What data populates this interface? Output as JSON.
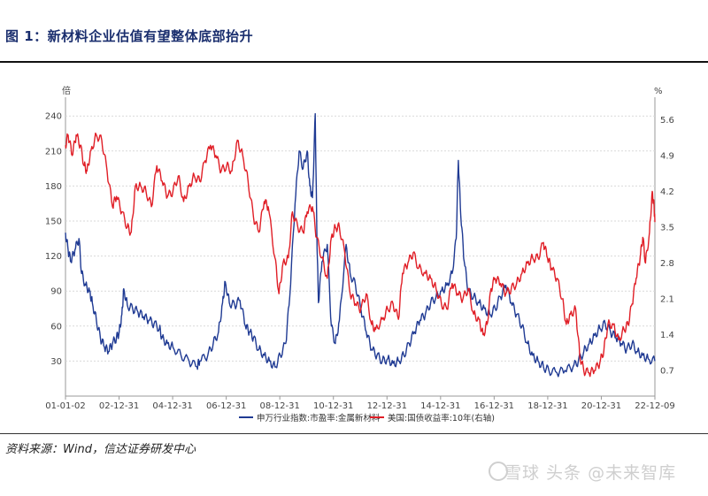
{
  "header": {
    "title": "图 1：新材料企业估值有望整体底部抬升"
  },
  "footer": {
    "source": "资料来源：Wind，信达证券研发中心",
    "watermark": "雪球 头条 @未来智库"
  },
  "chart_data": {
    "type": "line",
    "title": "",
    "left_axis": {
      "unit_label": "倍",
      "ylim": [
        0,
        250
      ],
      "ticks": [
        30,
        60,
        90,
        120,
        150,
        180,
        210,
        240
      ]
    },
    "right_axis": {
      "unit_label": "%",
      "ylim": [
        0.2,
        5.9
      ],
      "ticks": [
        0.7,
        1.4,
        2.1,
        2.8,
        3.5,
        4.2,
        4.9,
        5.6
      ]
    },
    "x_ticks": [
      "01-01-02",
      "02-12-31",
      "04-12-31",
      "06-12-31",
      "08-12-31",
      "10-12-31",
      "12-12-31",
      "14-12-31",
      "16-12-31",
      "18-12-31",
      "20-12-31",
      "22-12-09"
    ],
    "x_range": [
      2001.0,
      2022.95
    ],
    "grid": true,
    "legend_position": "bottom",
    "series": [
      {
        "name": "申万行业指数:市盈率:金属新材料",
        "axis": "left",
        "color": "#1f3a93",
        "points": [
          [
            2001.0,
            140
          ],
          [
            2001.1,
            125
          ],
          [
            2001.2,
            115
          ],
          [
            2001.35,
            125
          ],
          [
            2001.5,
            135
          ],
          [
            2001.6,
            105
          ],
          [
            2001.75,
            95
          ],
          [
            2001.9,
            90
          ],
          [
            2002.0,
            80
          ],
          [
            2002.15,
            65
          ],
          [
            2002.3,
            50
          ],
          [
            2002.45,
            42
          ],
          [
            2002.6,
            38
          ],
          [
            2002.75,
            45
          ],
          [
            2002.9,
            50
          ],
          [
            2003.0,
            55
          ],
          [
            2003.1,
            70
          ],
          [
            2003.17,
            92
          ],
          [
            2003.3,
            78
          ],
          [
            2003.5,
            75
          ],
          [
            2003.7,
            72
          ],
          [
            2003.9,
            68
          ],
          [
            2004.1,
            65
          ],
          [
            2004.3,
            62
          ],
          [
            2004.5,
            58
          ],
          [
            2004.6,
            50
          ],
          [
            2004.8,
            45
          ],
          [
            2005.0,
            42
          ],
          [
            2005.3,
            35
          ],
          [
            2005.6,
            30
          ],
          [
            2005.9,
            25
          ],
          [
            2006.0,
            30
          ],
          [
            2006.3,
            35
          ],
          [
            2006.5,
            45
          ],
          [
            2006.7,
            55
          ],
          [
            2006.85,
            80
          ],
          [
            2006.95,
            98
          ],
          [
            2007.1,
            80
          ],
          [
            2007.3,
            78
          ],
          [
            2007.5,
            82
          ],
          [
            2007.7,
            60
          ],
          [
            2007.85,
            55
          ],
          [
            2008.0,
            50
          ],
          [
            2008.2,
            40
          ],
          [
            2008.4,
            35
          ],
          [
            2008.6,
            30
          ],
          [
            2008.8,
            25
          ],
          [
            2009.0,
            35
          ],
          [
            2009.2,
            45
          ],
          [
            2009.35,
            85
          ],
          [
            2009.55,
            165
          ],
          [
            2009.7,
            210
          ],
          [
            2009.85,
            195
          ],
          [
            2010.0,
            210
          ],
          [
            2010.1,
            180
          ],
          [
            2010.2,
            170
          ],
          [
            2010.3,
            242
          ],
          [
            2010.36,
            140
          ],
          [
            2010.42,
            80
          ],
          [
            2010.55,
            115
          ],
          [
            2010.75,
            130
          ],
          [
            2010.9,
            60
          ],
          [
            2011.05,
            45
          ],
          [
            2011.2,
            65
          ],
          [
            2011.45,
            130
          ],
          [
            2011.6,
            105
          ],
          [
            2011.8,
            95
          ],
          [
            2012.0,
            75
          ],
          [
            2012.2,
            55
          ],
          [
            2012.4,
            40
          ],
          [
            2012.6,
            35
          ],
          [
            2012.8,
            30
          ],
          [
            2013.0,
            32
          ],
          [
            2013.2,
            28
          ],
          [
            2013.4,
            30
          ],
          [
            2013.6,
            35
          ],
          [
            2013.8,
            45
          ],
          [
            2014.0,
            55
          ],
          [
            2014.2,
            65
          ],
          [
            2014.4,
            70
          ],
          [
            2014.6,
            80
          ],
          [
            2014.8,
            85
          ],
          [
            2015.0,
            90
          ],
          [
            2015.2,
            95
          ],
          [
            2015.4,
            105
          ],
          [
            2015.55,
            135
          ],
          [
            2015.63,
            202
          ],
          [
            2015.72,
            155
          ],
          [
            2015.85,
            115
          ],
          [
            2016.0,
            90
          ],
          [
            2016.2,
            85
          ],
          [
            2016.4,
            80
          ],
          [
            2016.6,
            75
          ],
          [
            2016.8,
            70
          ],
          [
            2017.0,
            75
          ],
          [
            2017.2,
            85
          ],
          [
            2017.4,
            95
          ],
          [
            2017.6,
            80
          ],
          [
            2017.8,
            70
          ],
          [
            2018.0,
            60
          ],
          [
            2018.2,
            45
          ],
          [
            2018.4,
            35
          ],
          [
            2018.6,
            30
          ],
          [
            2018.8,
            25
          ],
          [
            2019.0,
            22
          ],
          [
            2019.3,
            20
          ],
          [
            2019.6,
            22
          ],
          [
            2019.9,
            25
          ],
          [
            2020.1,
            30
          ],
          [
            2020.3,
            38
          ],
          [
            2020.5,
            45
          ],
          [
            2020.7,
            52
          ],
          [
            2020.9,
            58
          ],
          [
            2021.1,
            62
          ],
          [
            2021.3,
            55
          ],
          [
            2021.5,
            50
          ],
          [
            2021.7,
            45
          ],
          [
            2021.9,
            40
          ],
          [
            2022.1,
            45
          ],
          [
            2022.3,
            38
          ],
          [
            2022.5,
            35
          ],
          [
            2022.7,
            32
          ],
          [
            2022.95,
            30
          ]
        ]
      },
      {
        "name": "美国:国债收益率:10年(右轴)",
        "axis": "right",
        "color": "#e01e26",
        "points": [
          [
            2001.0,
            5.1
          ],
          [
            2001.1,
            5.3
          ],
          [
            2001.25,
            4.9
          ],
          [
            2001.4,
            5.3
          ],
          [
            2001.55,
            5.1
          ],
          [
            2001.7,
            4.7
          ],
          [
            2001.8,
            4.6
          ],
          [
            2001.95,
            5.0
          ],
          [
            2002.15,
            5.3
          ],
          [
            2002.35,
            5.2
          ],
          [
            2002.55,
            4.6
          ],
          [
            2002.75,
            3.9
          ],
          [
            2002.9,
            4.1
          ],
          [
            2003.1,
            3.8
          ],
          [
            2003.3,
            3.5
          ],
          [
            2003.45,
            3.4
          ],
          [
            2003.6,
            4.3
          ],
          [
            2003.8,
            4.3
          ],
          [
            2004.0,
            4.2
          ],
          [
            2004.2,
            3.9
          ],
          [
            2004.4,
            4.7
          ],
          [
            2004.6,
            4.4
          ],
          [
            2004.8,
            4.1
          ],
          [
            2005.0,
            4.2
          ],
          [
            2005.2,
            4.5
          ],
          [
            2005.4,
            4.0
          ],
          [
            2005.6,
            4.3
          ],
          [
            2005.8,
            4.5
          ],
          [
            2006.0,
            4.4
          ],
          [
            2006.2,
            4.8
          ],
          [
            2006.4,
            5.1
          ],
          [
            2006.6,
            4.9
          ],
          [
            2006.8,
            4.6
          ],
          [
            2007.0,
            4.7
          ],
          [
            2007.2,
            4.6
          ],
          [
            2007.4,
            5.2
          ],
          [
            2007.6,
            4.9
          ],
          [
            2007.8,
            4.4
          ],
          [
            2008.0,
            3.7
          ],
          [
            2008.2,
            3.4
          ],
          [
            2008.4,
            4.0
          ],
          [
            2008.55,
            3.9
          ],
          [
            2008.8,
            2.9
          ],
          [
            2008.95,
            2.2
          ],
          [
            2009.1,
            2.8
          ],
          [
            2009.3,
            2.9
          ],
          [
            2009.45,
            3.8
          ],
          [
            2009.65,
            3.5
          ],
          [
            2009.85,
            3.4
          ],
          [
            2010.0,
            3.8
          ],
          [
            2010.2,
            3.9
          ],
          [
            2010.35,
            3.3
          ],
          [
            2010.55,
            2.9
          ],
          [
            2010.75,
            2.5
          ],
          [
            2010.9,
            3.3
          ],
          [
            2011.05,
            3.5
          ],
          [
            2011.2,
            3.5
          ],
          [
            2011.4,
            3.0
          ],
          [
            2011.6,
            2.2
          ],
          [
            2011.8,
            2.0
          ],
          [
            2012.0,
            1.9
          ],
          [
            2012.2,
            2.2
          ],
          [
            2012.4,
            1.6
          ],
          [
            2012.55,
            1.5
          ],
          [
            2012.8,
            1.7
          ],
          [
            2013.0,
            1.9
          ],
          [
            2013.2,
            2.0
          ],
          [
            2013.4,
            1.7
          ],
          [
            2013.55,
            2.6
          ],
          [
            2013.75,
            2.8
          ],
          [
            2013.95,
            3.0
          ],
          [
            2014.15,
            2.7
          ],
          [
            2014.4,
            2.6
          ],
          [
            2014.6,
            2.5
          ],
          [
            2014.8,
            2.3
          ],
          [
            2015.0,
            2.0
          ],
          [
            2015.2,
            1.9
          ],
          [
            2015.4,
            2.4
          ],
          [
            2015.6,
            2.2
          ],
          [
            2015.8,
            2.1
          ],
          [
            2016.0,
            2.3
          ],
          [
            2016.2,
            1.8
          ],
          [
            2016.4,
            1.7
          ],
          [
            2016.55,
            1.4
          ],
          [
            2016.7,
            1.6
          ],
          [
            2016.85,
            2.3
          ],
          [
            2017.0,
            2.5
          ],
          [
            2017.2,
            2.4
          ],
          [
            2017.4,
            2.2
          ],
          [
            2017.6,
            2.3
          ],
          [
            2017.8,
            2.4
          ],
          [
            2018.0,
            2.6
          ],
          [
            2018.2,
            2.8
          ],
          [
            2018.4,
            2.9
          ],
          [
            2018.6,
            2.9
          ],
          [
            2018.8,
            3.2
          ],
          [
            2018.95,
            2.9
          ],
          [
            2019.1,
            2.7
          ],
          [
            2019.3,
            2.5
          ],
          [
            2019.5,
            2.1
          ],
          [
            2019.65,
            1.6
          ],
          [
            2019.8,
            1.8
          ],
          [
            2020.0,
            1.9
          ],
          [
            2020.15,
            1.0
          ],
          [
            2020.3,
            0.7
          ],
          [
            2020.5,
            0.65
          ],
          [
            2020.7,
            0.7
          ],
          [
            2020.9,
            0.85
          ],
          [
            2021.05,
            1.1
          ],
          [
            2021.2,
            1.6
          ],
          [
            2021.4,
            1.6
          ],
          [
            2021.6,
            1.3
          ],
          [
            2021.8,
            1.5
          ],
          [
            2021.95,
            1.6
          ],
          [
            2022.1,
            2.0
          ],
          [
            2022.25,
            2.5
          ],
          [
            2022.4,
            2.9
          ],
          [
            2022.5,
            3.3
          ],
          [
            2022.6,
            2.8
          ],
          [
            2022.75,
            3.4
          ],
          [
            2022.85,
            4.2
          ],
          [
            2022.92,
            3.9
          ],
          [
            2022.95,
            3.6
          ]
        ]
      }
    ]
  }
}
